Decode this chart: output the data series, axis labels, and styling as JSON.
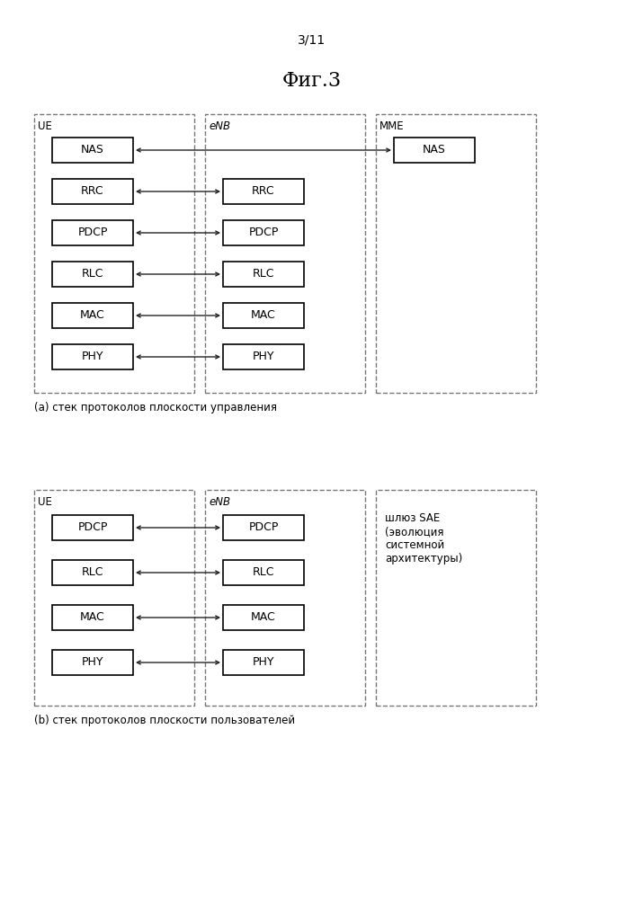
{
  "page_label": "3/11",
  "figure_title": "Фиг.3",
  "bg_color": "#ffffff",
  "text_color": "#000000",
  "dashed_color": "#777777",
  "diagram_a": {
    "caption": "(a) стек протоколов плоскости управления",
    "ue_label": "UE",
    "enb_label": "eNB",
    "mme_label": "MME",
    "ue_boxes": [
      "NAS",
      "RRC",
      "PDCP",
      "RLC",
      "MAC",
      "PHY"
    ],
    "enb_boxes": [
      "RRC",
      "PDCP",
      "RLC",
      "MAC",
      "PHY"
    ],
    "mme_boxes": [
      "NAS"
    ]
  },
  "diagram_b": {
    "caption": "(b) стек протоколов плоскости пользователей",
    "ue_label": "UE",
    "enb_label": "eNB",
    "sae_label": "шлюз SAE\n(эволюция\nсистемной\nархитектуры)",
    "ue_boxes": [
      "PDCP",
      "RLC",
      "MAC",
      "PHY"
    ],
    "enb_boxes": [
      "PDCP",
      "RLC",
      "MAC",
      "PHY"
    ]
  }
}
